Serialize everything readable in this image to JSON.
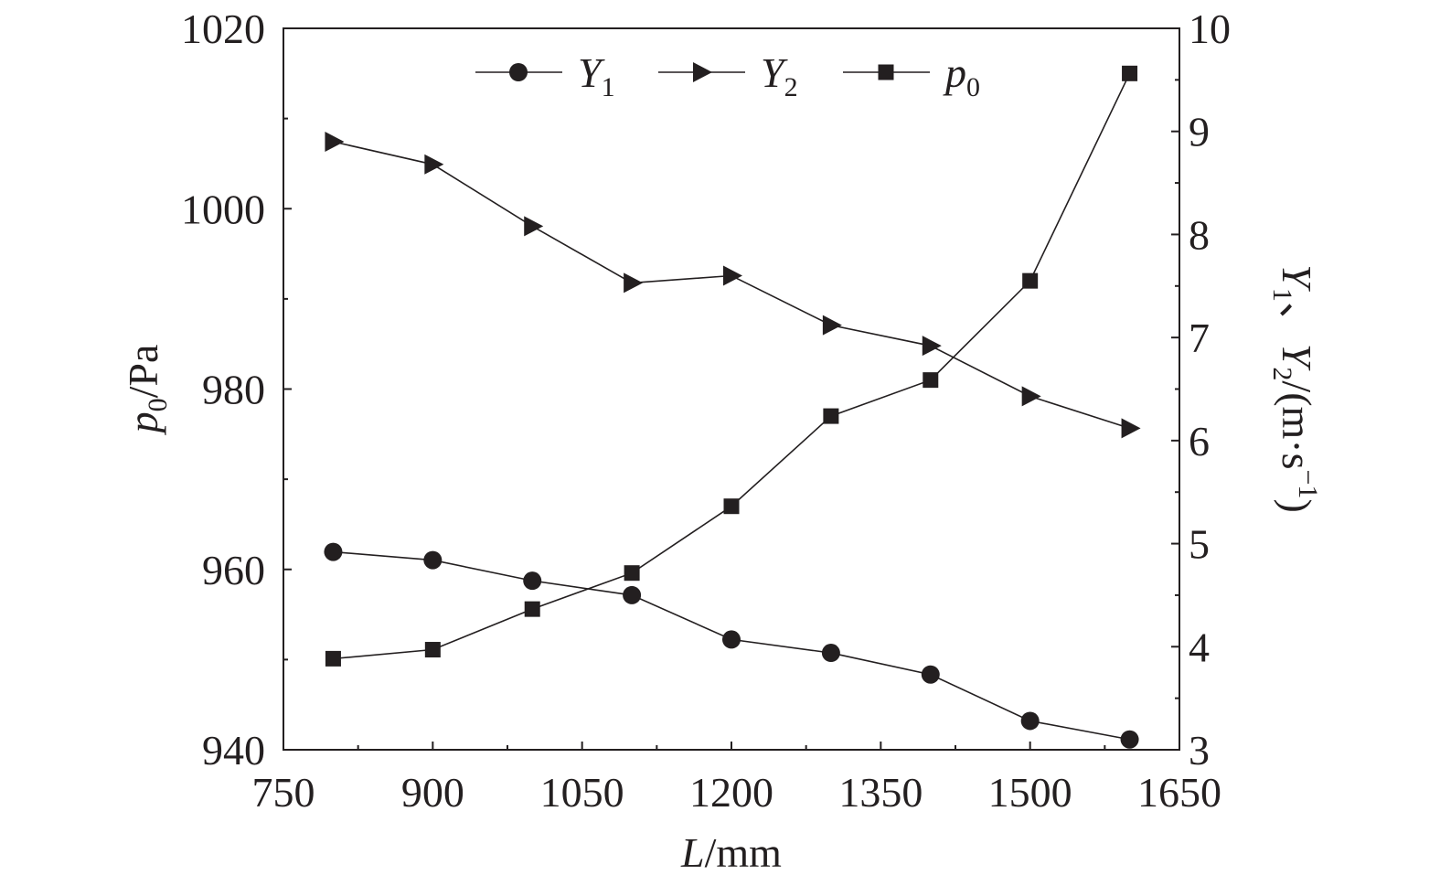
{
  "chart_data": {
    "type": "line",
    "x": [
      800,
      900,
      1000,
      1100,
      1200,
      1300,
      1400,
      1500,
      1600
    ],
    "xlim": [
      750,
      1650
    ],
    "xticks": [
      750,
      900,
      1050,
      1200,
      1350,
      1500,
      1650
    ],
    "xlabel": {
      "var": "L",
      "unit": "/mm"
    },
    "ylim_left": [
      940,
      1020
    ],
    "yticks_left": [
      940,
      960,
      980,
      1000,
      1020
    ],
    "ylabel_left": {
      "var": "p",
      "sub": "0",
      "unit": "/Pa"
    },
    "ylim_right": [
      3,
      10
    ],
    "yticks_right": [
      3,
      4,
      5,
      6,
      7,
      8,
      9,
      10
    ],
    "ylabel_right": {
      "v1": "Y",
      "s1": "1",
      "sep": "、",
      "v2": "Y",
      "s2": "2",
      "unit": "/(m·s",
      "exp": "−1",
      "close": ")"
    },
    "grid": false,
    "legend_position": "top",
    "series": [
      {
        "name": "Y",
        "sub": "1",
        "axis": "right",
        "marker": "circle",
        "values": [
          4.92,
          4.84,
          4.64,
          4.5,
          4.07,
          3.94,
          3.73,
          3.28,
          3.1
        ]
      },
      {
        "name": "Y",
        "sub": "2",
        "axis": "right",
        "marker": "triangle-right",
        "values": [
          8.9,
          8.68,
          8.08,
          7.53,
          7.6,
          7.12,
          6.92,
          6.43,
          6.12
        ]
      },
      {
        "name": "p",
        "sub": "0",
        "axis": "left",
        "marker": "square",
        "values": [
          950.1,
          951.1,
          955.6,
          959.6,
          967.0,
          977.0,
          981.0,
          992.0,
          1015.0
        ]
      }
    ]
  }
}
